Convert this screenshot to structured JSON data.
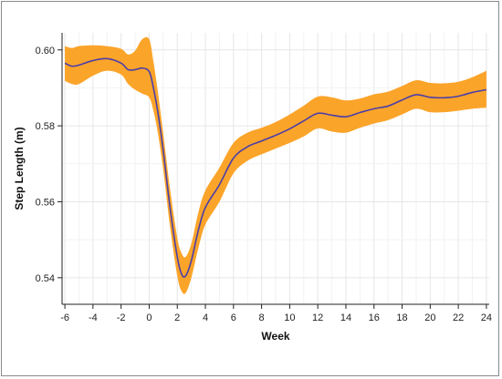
{
  "chart_data": {
    "type": "line",
    "title": "",
    "xlabel": "Week",
    "ylabel": "Step Length (m)",
    "xlim": [
      -6.2,
      24.2
    ],
    "ylim": [
      0.533,
      0.6045
    ],
    "x_ticks": [
      -6,
      -4,
      -2,
      0,
      2,
      4,
      6,
      8,
      10,
      12,
      14,
      16,
      18,
      20,
      22,
      24
    ],
    "y_ticks": [
      0.54,
      0.56,
      0.58,
      0.6
    ],
    "x_tick_labels": [
      "-6",
      "-4",
      "-2",
      "0",
      "2",
      "4",
      "6",
      "8",
      "10",
      "12",
      "14",
      "16",
      "18",
      "20",
      "22",
      "24"
    ],
    "y_tick_labels": [
      "0.54",
      "0.56",
      "0.58",
      "0.60"
    ],
    "grid": true,
    "legend": "none",
    "colors": {
      "line": "#4b3fa8",
      "band": "#fba42a",
      "grid": "#e6e6e6",
      "axis": "#222222"
    },
    "series": [
      {
        "x": [
          -6,
          -5.5,
          -5,
          -4,
          -3,
          -2,
          -1.5,
          -1,
          -0.5,
          0,
          0.3,
          0.6,
          1,
          1.5,
          2,
          2.3,
          2.6,
          3,
          3.5,
          4,
          5,
          6,
          7,
          8,
          9,
          10,
          11,
          12,
          13,
          14,
          15,
          16,
          17,
          18,
          19,
          20,
          21,
          22,
          23,
          24
        ],
        "values": [
          0.5965,
          0.5957,
          0.596,
          0.5972,
          0.5977,
          0.5965,
          0.5948,
          0.5948,
          0.5952,
          0.5943,
          0.59,
          0.584,
          0.5735,
          0.558,
          0.5455,
          0.541,
          0.5405,
          0.5445,
          0.5525,
          0.5585,
          0.5645,
          0.5715,
          0.5745,
          0.576,
          0.5775,
          0.5792,
          0.5813,
          0.5833,
          0.5828,
          0.5824,
          0.5835,
          0.5845,
          0.5852,
          0.5868,
          0.5882,
          0.5875,
          0.5874,
          0.5878,
          0.5888,
          0.5895
        ],
        "band_upper": [
          0.601,
          0.6005,
          0.601,
          0.6012,
          0.601,
          0.6003,
          0.5988,
          0.5998,
          0.6028,
          0.6028,
          0.597,
          0.5895,
          0.578,
          0.563,
          0.5505,
          0.5465,
          0.5455,
          0.549,
          0.5572,
          0.563,
          0.569,
          0.5755,
          0.5782,
          0.5795,
          0.581,
          0.583,
          0.5853,
          0.5877,
          0.5875,
          0.5867,
          0.5872,
          0.5883,
          0.589,
          0.5905,
          0.592,
          0.5913,
          0.5912,
          0.5916,
          0.5928,
          0.5945
        ],
        "band_lower": [
          0.5918,
          0.591,
          0.591,
          0.5932,
          0.5945,
          0.5935,
          0.591,
          0.5895,
          0.5885,
          0.5875,
          0.584,
          0.5785,
          0.5685,
          0.553,
          0.5405,
          0.5365,
          0.536,
          0.54,
          0.5478,
          0.554,
          0.56,
          0.5675,
          0.5708,
          0.5725,
          0.574,
          0.5755,
          0.5772,
          0.5793,
          0.5785,
          0.5782,
          0.5795,
          0.5806,
          0.5815,
          0.583,
          0.5845,
          0.5836,
          0.5836,
          0.584,
          0.5845,
          0.5848
        ]
      }
    ]
  }
}
